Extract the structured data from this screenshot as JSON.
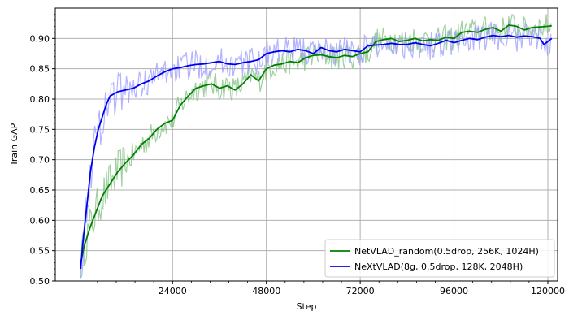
{
  "chart_data": {
    "type": "line",
    "title": "",
    "xlabel": "Step",
    "ylabel": "Train GAP",
    "xlim": [
      -6000,
      122500
    ],
    "ylim": [
      0.5,
      0.95
    ],
    "x_ticks": [
      24000,
      48000,
      72000,
      96000,
      120000
    ],
    "x_tick_labels": [
      "24000",
      "48000",
      "72000",
      "96000",
      "120000"
    ],
    "y_ticks": [
      0.5,
      0.55,
      0.6,
      0.65,
      0.7,
      0.75,
      0.8,
      0.85,
      0.9
    ],
    "y_tick_labels": [
      "0.50",
      "0.55",
      "0.60",
      "0.65",
      "0.70",
      "0.75",
      "0.80",
      "0.85",
      "0.90"
    ],
    "grid": true,
    "legend_position": "lower-right",
    "series": [
      {
        "name": "NetVLAD_random(0.5drop, 256K, 1024H)",
        "color": "#008000",
        "raw_color": "#80c080",
        "x": [
          500,
          1500,
          3000,
          4500,
          6000,
          8000,
          10000,
          12000,
          14000,
          16000,
          18000,
          20000,
          22000,
          24000,
          26000,
          28000,
          30000,
          32000,
          34000,
          36000,
          38000,
          40000,
          42000,
          44000,
          46000,
          48000,
          50000,
          52000,
          54000,
          56000,
          58000,
          60000,
          62000,
          64000,
          66000,
          68000,
          70000,
          72000,
          74000,
          76000,
          78000,
          80000,
          82000,
          84000,
          86000,
          88000,
          90000,
          92000,
          94000,
          96000,
          98000,
          100000,
          102000,
          104000,
          106000,
          108000,
          110000,
          112000,
          114000,
          116000,
          118000,
          120000,
          121000
        ],
        "y": [
          0.53,
          0.56,
          0.59,
          0.615,
          0.64,
          0.66,
          0.68,
          0.695,
          0.708,
          0.725,
          0.735,
          0.75,
          0.76,
          0.765,
          0.79,
          0.805,
          0.818,
          0.822,
          0.825,
          0.818,
          0.822,
          0.815,
          0.825,
          0.84,
          0.83,
          0.85,
          0.856,
          0.858,
          0.862,
          0.86,
          0.868,
          0.872,
          0.873,
          0.87,
          0.868,
          0.872,
          0.87,
          0.875,
          0.878,
          0.895,
          0.898,
          0.9,
          0.895,
          0.897,
          0.9,
          0.896,
          0.898,
          0.897,
          0.902,
          0.9,
          0.91,
          0.912,
          0.91,
          0.915,
          0.918,
          0.912,
          0.922,
          0.92,
          0.914,
          0.918,
          0.919,
          0.92,
          0.921
        ]
      },
      {
        "name": "NeXtVLAD(8g, 0.5drop, 128K, 2048H)",
        "color": "#0000ee",
        "raw_color": "#9999ff",
        "x": [
          500,
          1000,
          2000,
          3000,
          4000,
          5000,
          6000,
          7000,
          8000,
          10000,
          12000,
          14000,
          16000,
          18000,
          20000,
          22000,
          24000,
          26000,
          28000,
          30000,
          32000,
          34000,
          36000,
          38000,
          40000,
          42000,
          44000,
          46000,
          48000,
          50000,
          52000,
          54000,
          56000,
          58000,
          60000,
          62000,
          64000,
          66000,
          68000,
          70000,
          72000,
          74000,
          76000,
          78000,
          80000,
          82000,
          84000,
          86000,
          88000,
          90000,
          92000,
          94000,
          96000,
          98000,
          100000,
          102000,
          104000,
          106000,
          108000,
          110000,
          112000,
          114000,
          116000,
          118000,
          119000,
          120000,
          121000
        ],
        "y": [
          0.52,
          0.56,
          0.62,
          0.68,
          0.72,
          0.75,
          0.77,
          0.79,
          0.805,
          0.812,
          0.815,
          0.818,
          0.825,
          0.83,
          0.838,
          0.845,
          0.85,
          0.852,
          0.855,
          0.857,
          0.858,
          0.86,
          0.862,
          0.858,
          0.857,
          0.86,
          0.862,
          0.865,
          0.875,
          0.878,
          0.88,
          0.878,
          0.882,
          0.88,
          0.875,
          0.885,
          0.88,
          0.878,
          0.882,
          0.88,
          0.878,
          0.888,
          0.889,
          0.89,
          0.892,
          0.89,
          0.89,
          0.893,
          0.89,
          0.888,
          0.892,
          0.897,
          0.893,
          0.897,
          0.9,
          0.898,
          0.902,
          0.905,
          0.903,
          0.905,
          0.902,
          0.904,
          0.903,
          0.9,
          0.89,
          0.895,
          0.9
        ]
      }
    ]
  }
}
